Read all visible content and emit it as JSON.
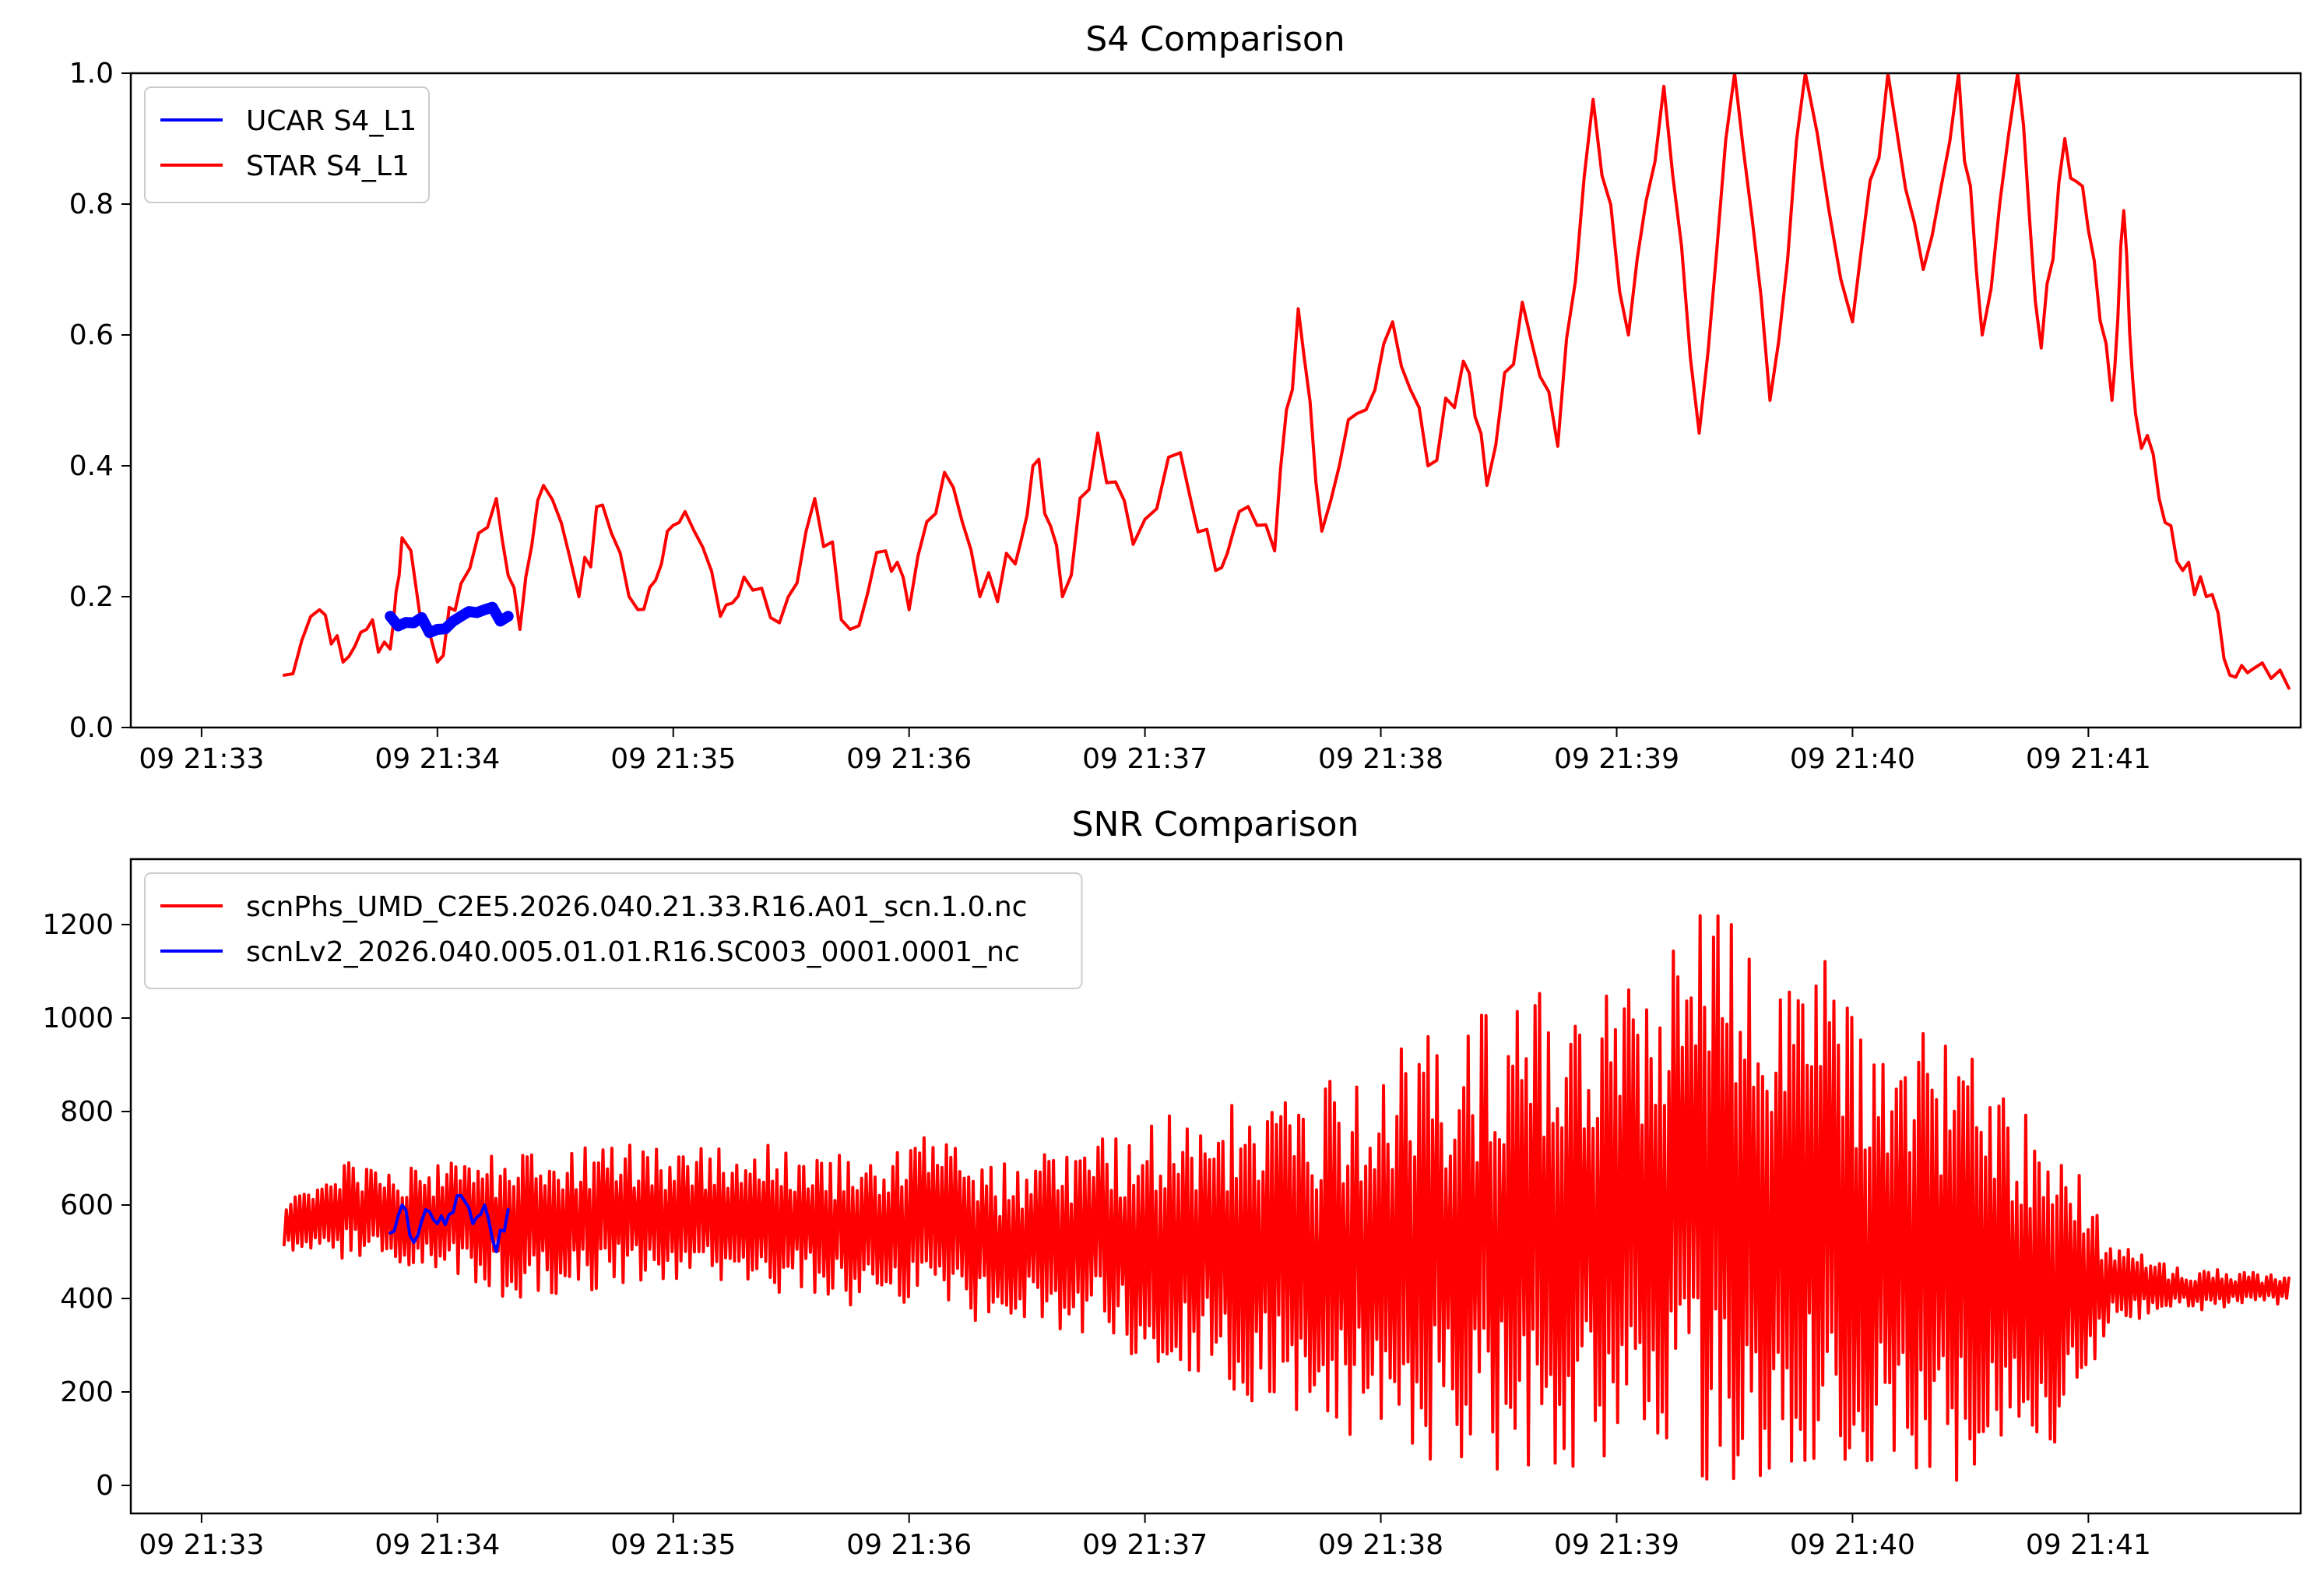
{
  "colors": {
    "blue": "#0000ff",
    "red": "#ff0000",
    "axis": "#000000",
    "legend_border": "#cccccc"
  },
  "top_chart": {
    "title": "S4 Comparison",
    "x_ticks": [
      "09 21:33",
      "09 21:34",
      "09 21:35",
      "09 21:36",
      "09 21:37",
      "09 21:38",
      "09 21:39",
      "09 21:40",
      "09 21:41"
    ],
    "y_ticks": [
      "0.0",
      "0.2",
      "0.4",
      "0.6",
      "0.8",
      "1.0"
    ],
    "legend": [
      {
        "label": "UCAR S4_L1",
        "color": "#0000ff"
      },
      {
        "label": "STAR S4_L1",
        "color": "#ff0000"
      }
    ]
  },
  "bottom_chart": {
    "title": "SNR Comparison",
    "x_ticks": [
      "09 21:33",
      "09 21:34",
      "09 21:35",
      "09 21:36",
      "09 21:37",
      "09 21:38",
      "09 21:39",
      "09 21:40",
      "09 21:41"
    ],
    "y_ticks": [
      "0",
      "200",
      "400",
      "600",
      "800",
      "1000",
      "1200"
    ],
    "legend": [
      {
        "label": "scnPhs_UMD_C2E5.2026.040.21.33.R16.A01_scn.1.0.nc",
        "color": "#ff0000"
      },
      {
        "label": "scnLv2_2026.040.005.01.01.R16.SC003_0001.0001_nc",
        "color": "#0000ff"
      }
    ]
  },
  "chart_data": [
    {
      "type": "line",
      "title": "S4 Comparison",
      "x_unit": "minutes after 21:33 on day 09",
      "xlim": [
        -0.3,
        8.9
      ],
      "ylim": [
        0.0,
        1.0
      ],
      "x_tick_values": [
        0,
        1,
        2,
        3,
        4,
        5,
        6,
        7,
        8
      ],
      "y_tick_values": [
        0.0,
        0.2,
        0.4,
        0.6,
        0.8,
        1.0
      ],
      "legend_position": "upper-left",
      "grid": false,
      "series": [
        {
          "name": "STAR S4_L1",
          "color": "#ff0000",
          "x": [
            0.35,
            0.5,
            0.6,
            0.7,
            0.8,
            0.85,
            1.0,
            1.1,
            1.25,
            1.35,
            1.45,
            1.6,
            1.7,
            1.85,
            1.95,
            2.05,
            2.2,
            2.3,
            2.45,
            2.6,
            2.75,
            2.9,
            3.0,
            3.15,
            3.3,
            3.45,
            3.55,
            3.65,
            3.8,
            3.95,
            4.15,
            4.3,
            4.4,
            4.55,
            4.65,
            4.75,
            4.9,
            5.05,
            5.2,
            5.35,
            5.45,
            5.6,
            5.75,
            5.9,
            6.05,
            6.2,
            6.35,
            6.5,
            6.65,
            6.8,
            7.0,
            7.15,
            7.3,
            7.45,
            7.55,
            7.7,
            7.8,
            7.9,
            8.0,
            8.1,
            8.15,
            8.2,
            8.3,
            8.4,
            8.5,
            8.6,
            8.7,
            8.85
          ],
          "y": [
            0.08,
            0.18,
            0.1,
            0.15,
            0.12,
            0.29,
            0.1,
            0.22,
            0.35,
            0.15,
            0.37,
            0.2,
            0.34,
            0.18,
            0.25,
            0.33,
            0.17,
            0.23,
            0.16,
            0.35,
            0.15,
            0.27,
            0.18,
            0.39,
            0.2,
            0.25,
            0.41,
            0.2,
            0.45,
            0.28,
            0.42,
            0.24,
            0.33,
            0.27,
            0.64,
            0.3,
            0.48,
            0.62,
            0.4,
            0.56,
            0.37,
            0.65,
            0.43,
            0.96,
            0.6,
            0.98,
            0.45,
            1.0,
            0.5,
            1.0,
            0.62,
            1.0,
            0.7,
            1.0,
            0.6,
            1.0,
            0.58,
            0.9,
            0.76,
            0.5,
            0.79,
            0.48,
            0.35,
            0.24,
            0.2,
            0.08,
            0.09,
            0.06
          ]
        },
        {
          "name": "UCAR S4_L1",
          "color": "#0000ff",
          "x": [
            0.8,
            0.9,
            1.0,
            1.1,
            1.2,
            1.3
          ],
          "y": [
            0.17,
            0.16,
            0.15,
            0.17,
            0.18,
            0.17
          ]
        }
      ]
    },
    {
      "type": "line",
      "title": "SNR Comparison",
      "x_unit": "minutes after 21:33 on day 09",
      "xlim": [
        -0.3,
        8.9
      ],
      "ylim": [
        -60,
        1340
      ],
      "x_tick_values": [
        0,
        1,
        2,
        3,
        4,
        5,
        6,
        7,
        8
      ],
      "y_tick_values": [
        0,
        200,
        400,
        600,
        800,
        1000,
        1200
      ],
      "legend_position": "upper-left",
      "grid": false,
      "series": [
        {
          "name": "scnPhs_UMD_C2E5.2026.040.21.33.R16.A01_scn.1.0.nc",
          "color": "#ff0000",
          "x": [
            0.35,
            0.6,
            0.85,
            1.1,
            1.35,
            1.6,
            1.85,
            2.1,
            2.35,
            2.6,
            2.85,
            3.1,
            3.35,
            3.6,
            3.85,
            4.1,
            4.35,
            4.6,
            4.85,
            5.1,
            5.35,
            5.6,
            5.85,
            6.1,
            6.35,
            6.6,
            6.85,
            7.1,
            7.35,
            7.6,
            7.85,
            8.1,
            8.35,
            8.6,
            8.85
          ],
          "y_min": [
            500,
            480,
            470,
            430,
            390,
            410,
            420,
            420,
            410,
            400,
            370,
            380,
            330,
            330,
            300,
            250,
            210,
            140,
            100,
            60,
            40,
            20,
            10,
            10,
            10,
            10,
            10,
            10,
            10,
            10,
            80,
            340,
            370,
            380,
            390
          ],
          "y_max": [
            620,
            700,
            680,
            700,
            720,
            730,
            730,
            720,
            730,
            720,
            700,
            760,
            690,
            710,
            760,
            800,
            810,
            850,
            870,
            950,
            990,
            1050,
            1090,
            1060,
            1270,
            1150,
            1150,
            1000,
            980,
            880,
            790,
            520,
            470,
            460,
            450
          ]
        },
        {
          "name": "scnLv2_2026.040.005.01.01.R16.SC003_0001.0001_nc",
          "color": "#0000ff",
          "x": [
            0.8,
            0.85,
            0.9,
            0.95,
            1.0,
            1.05,
            1.1,
            1.15,
            1.2,
            1.25,
            1.3
          ],
          "y": [
            540,
            600,
            520,
            590,
            560,
            580,
            620,
            560,
            600,
            500,
            590
          ]
        }
      ]
    }
  ]
}
